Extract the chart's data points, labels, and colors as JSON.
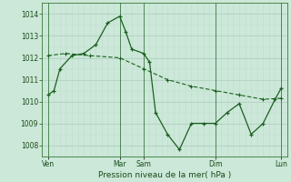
{
  "background_color": "#cce8d8",
  "grid_color_major": "#aacabc",
  "grid_color_minor": "#c0ddd0",
  "line_color": "#1a6020",
  "xlabel": "Pression niveau de la mer( hPa )",
  "ylim": [
    1007.5,
    1014.5
  ],
  "yticks": [
    1008,
    1009,
    1010,
    1011,
    1012,
    1013,
    1014
  ],
  "xtick_labels": [
    "Ven",
    "Mar",
    "Sam",
    "Dim",
    "Lun"
  ],
  "xtick_positions": [
    0.5,
    6.5,
    8.5,
    14.5,
    20.0
  ],
  "vline_positions": [
    0.5,
    6.5,
    8.5,
    14.5,
    20.0
  ],
  "series1_x": [
    0.5,
    1.0,
    1.5,
    2.5,
    3.5,
    4.5,
    5.5,
    6.5,
    7.0,
    7.5,
    8.5,
    9.0,
    9.5,
    10.5,
    11.5,
    12.5,
    13.5,
    14.5,
    15.5,
    16.5,
    17.5,
    18.5,
    19.5,
    20.0
  ],
  "series1_y": [
    1010.3,
    1010.5,
    1011.5,
    1012.1,
    1012.2,
    1012.6,
    1013.6,
    1013.9,
    1013.2,
    1012.4,
    1012.2,
    1011.8,
    1009.5,
    1008.5,
    1007.8,
    1009.0,
    1009.0,
    1009.0,
    1009.5,
    1009.9,
    1008.5,
    1009.0,
    1010.1,
    1010.6
  ],
  "series2_x": [
    0.5,
    2.0,
    4.0,
    6.5,
    8.5,
    10.5,
    12.5,
    14.5,
    16.5,
    18.5,
    20.0
  ],
  "series2_y": [
    1012.1,
    1012.2,
    1012.1,
    1012.0,
    1011.5,
    1011.0,
    1010.7,
    1010.5,
    1010.3,
    1010.1,
    1010.15
  ]
}
